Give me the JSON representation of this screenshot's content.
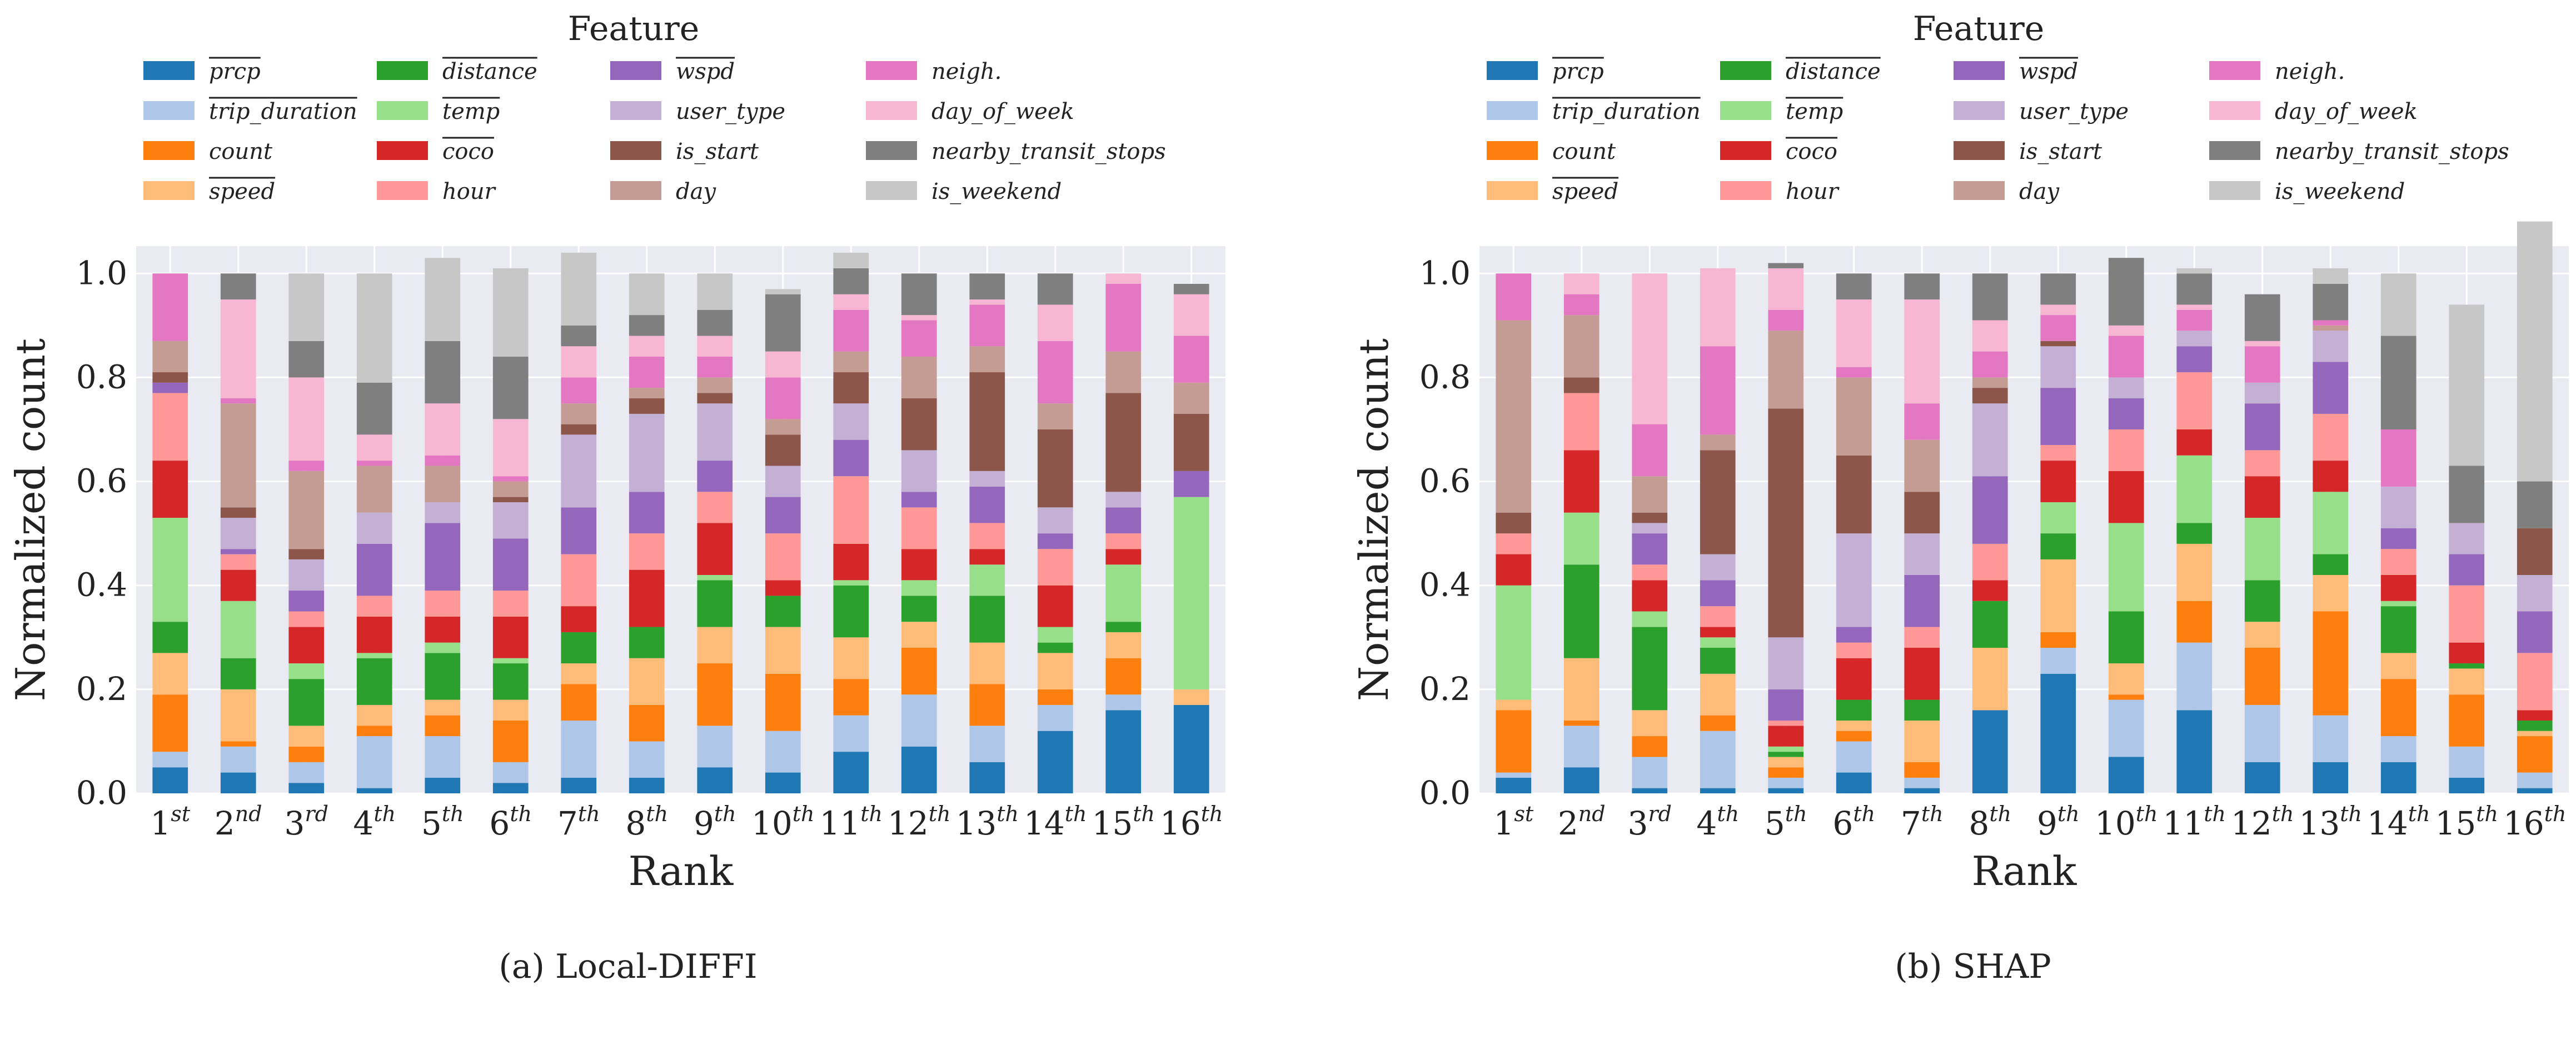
{
  "colors": {
    "prcp": "#1f77b4",
    "trip_duration": "#aec7e8",
    "count": "#ff7f0e",
    "speed": "#ffbb78",
    "distance": "#2ca02c",
    "temp": "#98df8a",
    "coco": "#d62728",
    "hour": "#ff9896",
    "wspd": "#9467bd",
    "user_type": "#c5b0d5",
    "is_start": "#8c564b",
    "day": "#c49c94",
    "neigh": "#e377c2",
    "day_of_week": "#f7b6d2",
    "nearby_transit_stops": "#7f7f7f",
    "is_weekend": "#c7c7c7",
    "plot_bg": "#eaeaf2"
  },
  "features": [
    {
      "key": "prcp",
      "label": "prcp",
      "overline": true
    },
    {
      "key": "trip_duration",
      "label": "trip_duration",
      "overline": true
    },
    {
      "key": "count",
      "label": "count",
      "overline": false
    },
    {
      "key": "speed",
      "label": "speed",
      "overline": true
    },
    {
      "key": "distance",
      "label": "distance",
      "overline": true
    },
    {
      "key": "temp",
      "label": "temp",
      "overline": true
    },
    {
      "key": "coco",
      "label": "coco",
      "overline": true
    },
    {
      "key": "hour",
      "label": "hour",
      "overline": false
    },
    {
      "key": "wspd",
      "label": "wspd",
      "overline": true
    },
    {
      "key": "user_type",
      "label": "user_type",
      "overline": false
    },
    {
      "key": "is_start",
      "label": "is_start",
      "overline": false
    },
    {
      "key": "day",
      "label": "day",
      "overline": false
    },
    {
      "key": "neigh",
      "label": "neigh.",
      "overline": false
    },
    {
      "key": "day_of_week",
      "label": "day_of_week",
      "overline": false
    },
    {
      "key": "nearby_transit_stops",
      "label": "nearby_transit_stops",
      "overline": false
    },
    {
      "key": "is_weekend",
      "label": "is_weekend",
      "overline": false
    }
  ],
  "chart_data": [
    {
      "type": "bar",
      "stacked": true,
      "legend_title": "Feature",
      "caption": "(a) Local-DIFFI",
      "xlabel": "Rank",
      "ylabel": "Normalized count",
      "ylim": [
        0,
        1.0
      ],
      "yticks": [
        "0.0",
        "0.2",
        "0.4",
        "0.6",
        "0.8",
        "1.0"
      ],
      "categories": [
        {
          "num": "1",
          "sup": "st"
        },
        {
          "num": "2",
          "sup": "nd"
        },
        {
          "num": "3",
          "sup": "rd"
        },
        {
          "num": "4",
          "sup": "th"
        },
        {
          "num": "5",
          "sup": "th"
        },
        {
          "num": "6",
          "sup": "th"
        },
        {
          "num": "7",
          "sup": "th"
        },
        {
          "num": "8",
          "sup": "th"
        },
        {
          "num": "9",
          "sup": "th"
        },
        {
          "num": "10",
          "sup": "th"
        },
        {
          "num": "11",
          "sup": "th"
        },
        {
          "num": "12",
          "sup": "th"
        },
        {
          "num": "13",
          "sup": "th"
        },
        {
          "num": "14",
          "sup": "th"
        },
        {
          "num": "15",
          "sup": "th"
        },
        {
          "num": "16",
          "sup": "th"
        }
      ],
      "series": [
        {
          "name": "prcp",
          "values": [
            0.05,
            0.04,
            0.02,
            0.01,
            0.03,
            0.02,
            0.03,
            0.03,
            0.05,
            0.04,
            0.08,
            0.09,
            0.06,
            0.12,
            0.16,
            0.17
          ]
        },
        {
          "name": "trip_duration",
          "values": [
            0.03,
            0.05,
            0.04,
            0.1,
            0.08,
            0.04,
            0.11,
            0.07,
            0.08,
            0.08,
            0.07,
            0.1,
            0.07,
            0.05,
            0.03,
            0.0
          ]
        },
        {
          "name": "count",
          "values": [
            0.11,
            0.01,
            0.03,
            0.02,
            0.04,
            0.08,
            0.07,
            0.07,
            0.12,
            0.11,
            0.07,
            0.09,
            0.08,
            0.03,
            0.07,
            0.0
          ]
        },
        {
          "name": "speed",
          "values": [
            0.08,
            0.1,
            0.04,
            0.04,
            0.03,
            0.04,
            0.04,
            0.09,
            0.07,
            0.09,
            0.08,
            0.05,
            0.08,
            0.07,
            0.05,
            0.03
          ]
        },
        {
          "name": "distance",
          "values": [
            0.06,
            0.06,
            0.09,
            0.09,
            0.09,
            0.07,
            0.06,
            0.06,
            0.09,
            0.06,
            0.1,
            0.05,
            0.09,
            0.02,
            0.02,
            0.0
          ]
        },
        {
          "name": "temp",
          "values": [
            0.2,
            0.11,
            0.03,
            0.01,
            0.02,
            0.01,
            0.0,
            0.0,
            0.01,
            0.0,
            0.01,
            0.03,
            0.06,
            0.03,
            0.11,
            0.37
          ]
        },
        {
          "name": "coco",
          "values": [
            0.11,
            0.06,
            0.07,
            0.07,
            0.05,
            0.08,
            0.05,
            0.11,
            0.1,
            0.03,
            0.07,
            0.06,
            0.03,
            0.08,
            0.03,
            0.0
          ]
        },
        {
          "name": "hour",
          "values": [
            0.13,
            0.03,
            0.03,
            0.04,
            0.05,
            0.05,
            0.1,
            0.07,
            0.06,
            0.09,
            0.13,
            0.08,
            0.05,
            0.07,
            0.03,
            0.0
          ]
        },
        {
          "name": "wspd",
          "values": [
            0.02,
            0.01,
            0.04,
            0.1,
            0.13,
            0.1,
            0.09,
            0.08,
            0.06,
            0.07,
            0.07,
            0.03,
            0.07,
            0.03,
            0.05,
            0.05
          ]
        },
        {
          "name": "user_type",
          "values": [
            0.0,
            0.06,
            0.06,
            0.06,
            0.04,
            0.07,
            0.14,
            0.15,
            0.11,
            0.06,
            0.07,
            0.08,
            0.03,
            0.05,
            0.03,
            0.0
          ]
        },
        {
          "name": "is_start",
          "values": [
            0.02,
            0.02,
            0.02,
            0.0,
            0.0,
            0.01,
            0.02,
            0.03,
            0.02,
            0.06,
            0.06,
            0.1,
            0.19,
            0.15,
            0.19,
            0.11
          ]
        },
        {
          "name": "day",
          "values": [
            0.06,
            0.2,
            0.15,
            0.09,
            0.07,
            0.03,
            0.04,
            0.02,
            0.03,
            0.03,
            0.04,
            0.08,
            0.05,
            0.05,
            0.08,
            0.06
          ]
        },
        {
          "name": "neigh",
          "values": [
            0.13,
            0.01,
            0.02,
            0.01,
            0.02,
            0.01,
            0.05,
            0.06,
            0.04,
            0.08,
            0.08,
            0.07,
            0.08,
            0.12,
            0.13,
            0.09
          ]
        },
        {
          "name": "day_of_week",
          "values": [
            0.0,
            0.19,
            0.16,
            0.05,
            0.1,
            0.11,
            0.06,
            0.04,
            0.04,
            0.05,
            0.03,
            0.01,
            0.01,
            0.07,
            0.02,
            0.08
          ]
        },
        {
          "name": "nearby_transit_stops",
          "values": [
            0.0,
            0.05,
            0.07,
            0.1,
            0.12,
            0.12,
            0.04,
            0.04,
            0.05,
            0.11,
            0.05,
            0.08,
            0.05,
            0.06,
            0.0,
            0.02
          ]
        },
        {
          "name": "is_weekend",
          "values": [
            0.0,
            0.0,
            0.13,
            0.21,
            0.16,
            0.17,
            0.14,
            0.08,
            0.07,
            0.01,
            0.03,
            0.0,
            0.0,
            0.0,
            0.0,
            0.0
          ]
        }
      ]
    },
    {
      "type": "bar",
      "stacked": true,
      "legend_title": "Feature",
      "caption": "(b) SHAP",
      "xlabel": "Rank",
      "ylabel": "Normalized count",
      "ylim": [
        0,
        1.0
      ],
      "yticks": [
        "0.0",
        "0.2",
        "0.4",
        "0.6",
        "0.8",
        "1.0"
      ],
      "categories": [
        {
          "num": "1",
          "sup": "st"
        },
        {
          "num": "2",
          "sup": "nd"
        },
        {
          "num": "3",
          "sup": "rd"
        },
        {
          "num": "4",
          "sup": "th"
        },
        {
          "num": "5",
          "sup": "th"
        },
        {
          "num": "6",
          "sup": "th"
        },
        {
          "num": "7",
          "sup": "th"
        },
        {
          "num": "8",
          "sup": "th"
        },
        {
          "num": "9",
          "sup": "th"
        },
        {
          "num": "10",
          "sup": "th"
        },
        {
          "num": "11",
          "sup": "th"
        },
        {
          "num": "12",
          "sup": "th"
        },
        {
          "num": "13",
          "sup": "th"
        },
        {
          "num": "14",
          "sup": "th"
        },
        {
          "num": "15",
          "sup": "th"
        },
        {
          "num": "16",
          "sup": "th"
        }
      ],
      "series": [
        {
          "name": "prcp",
          "values": [
            0.03,
            0.05,
            0.01,
            0.01,
            0.01,
            0.04,
            0.01,
            0.16,
            0.23,
            0.07,
            0.16,
            0.06,
            0.06,
            0.06,
            0.03,
            0.01
          ]
        },
        {
          "name": "trip_duration",
          "values": [
            0.01,
            0.08,
            0.06,
            0.11,
            0.02,
            0.06,
            0.02,
            0.0,
            0.05,
            0.11,
            0.13,
            0.11,
            0.09,
            0.05,
            0.06,
            0.03
          ]
        },
        {
          "name": "count",
          "values": [
            0.12,
            0.01,
            0.04,
            0.03,
            0.02,
            0.02,
            0.03,
            0.0,
            0.03,
            0.01,
            0.08,
            0.11,
            0.2,
            0.11,
            0.1,
            0.07
          ]
        },
        {
          "name": "speed",
          "values": [
            0.02,
            0.12,
            0.05,
            0.08,
            0.02,
            0.02,
            0.08,
            0.12,
            0.14,
            0.06,
            0.11,
            0.05,
            0.07,
            0.05,
            0.05,
            0.01
          ]
        },
        {
          "name": "distance",
          "values": [
            0.0,
            0.18,
            0.16,
            0.05,
            0.01,
            0.04,
            0.04,
            0.09,
            0.05,
            0.1,
            0.04,
            0.08,
            0.04,
            0.09,
            0.01,
            0.02
          ]
        },
        {
          "name": "temp",
          "values": [
            0.22,
            0.1,
            0.03,
            0.02,
            0.01,
            0.0,
            0.0,
            0.0,
            0.06,
            0.17,
            0.13,
            0.12,
            0.12,
            0.01,
            0.0,
            0.0
          ]
        },
        {
          "name": "coco",
          "values": [
            0.06,
            0.12,
            0.06,
            0.02,
            0.04,
            0.08,
            0.1,
            0.04,
            0.08,
            0.1,
            0.05,
            0.08,
            0.06,
            0.05,
            0.04,
            0.02
          ]
        },
        {
          "name": "hour",
          "values": [
            0.04,
            0.11,
            0.03,
            0.04,
            0.01,
            0.03,
            0.04,
            0.07,
            0.03,
            0.08,
            0.11,
            0.05,
            0.09,
            0.05,
            0.11,
            0.11
          ]
        },
        {
          "name": "wspd",
          "values": [
            0.0,
            0.0,
            0.06,
            0.05,
            0.06,
            0.03,
            0.1,
            0.13,
            0.11,
            0.06,
            0.05,
            0.09,
            0.1,
            0.04,
            0.06,
            0.08
          ]
        },
        {
          "name": "user_type",
          "values": [
            0.0,
            0.0,
            0.02,
            0.05,
            0.1,
            0.18,
            0.08,
            0.14,
            0.08,
            0.04,
            0.03,
            0.04,
            0.06,
            0.08,
            0.06,
            0.07
          ]
        },
        {
          "name": "is_start",
          "values": [
            0.04,
            0.03,
            0.02,
            0.2,
            0.44,
            0.15,
            0.08,
            0.03,
            0.01,
            0.0,
            0.0,
            0.0,
            0.0,
            0.0,
            0.0,
            0.09
          ]
        },
        {
          "name": "day",
          "values": [
            0.37,
            0.12,
            0.07,
            0.03,
            0.15,
            0.15,
            0.1,
            0.02,
            0.0,
            0.0,
            0.0,
            0.0,
            0.01,
            0.0,
            0.0,
            0.0
          ]
        },
        {
          "name": "neigh",
          "values": [
            0.09,
            0.04,
            0.1,
            0.17,
            0.04,
            0.02,
            0.07,
            0.05,
            0.05,
            0.08,
            0.04,
            0.07,
            0.01,
            0.11,
            0.0,
            0.0
          ]
        },
        {
          "name": "day_of_week",
          "values": [
            0.0,
            0.04,
            0.29,
            0.15,
            0.08,
            0.13,
            0.2,
            0.06,
            0.02,
            0.02,
            0.01,
            0.01,
            0.0,
            0.0,
            0.0,
            0.0
          ]
        },
        {
          "name": "nearby_transit_stops",
          "values": [
            0.0,
            0.0,
            0.0,
            0.0,
            0.01,
            0.05,
            0.05,
            0.09,
            0.06,
            0.13,
            0.06,
            0.09,
            0.07,
            0.18,
            0.11,
            0.09
          ]
        },
        {
          "name": "is_weekend",
          "values": [
            0.0,
            0.0,
            0.0,
            0.0,
            0.0,
            0.0,
            0.0,
            0.0,
            0.0,
            0.0,
            0.01,
            0.0,
            0.03,
            0.12,
            0.31,
            0.5
          ]
        }
      ]
    }
  ]
}
